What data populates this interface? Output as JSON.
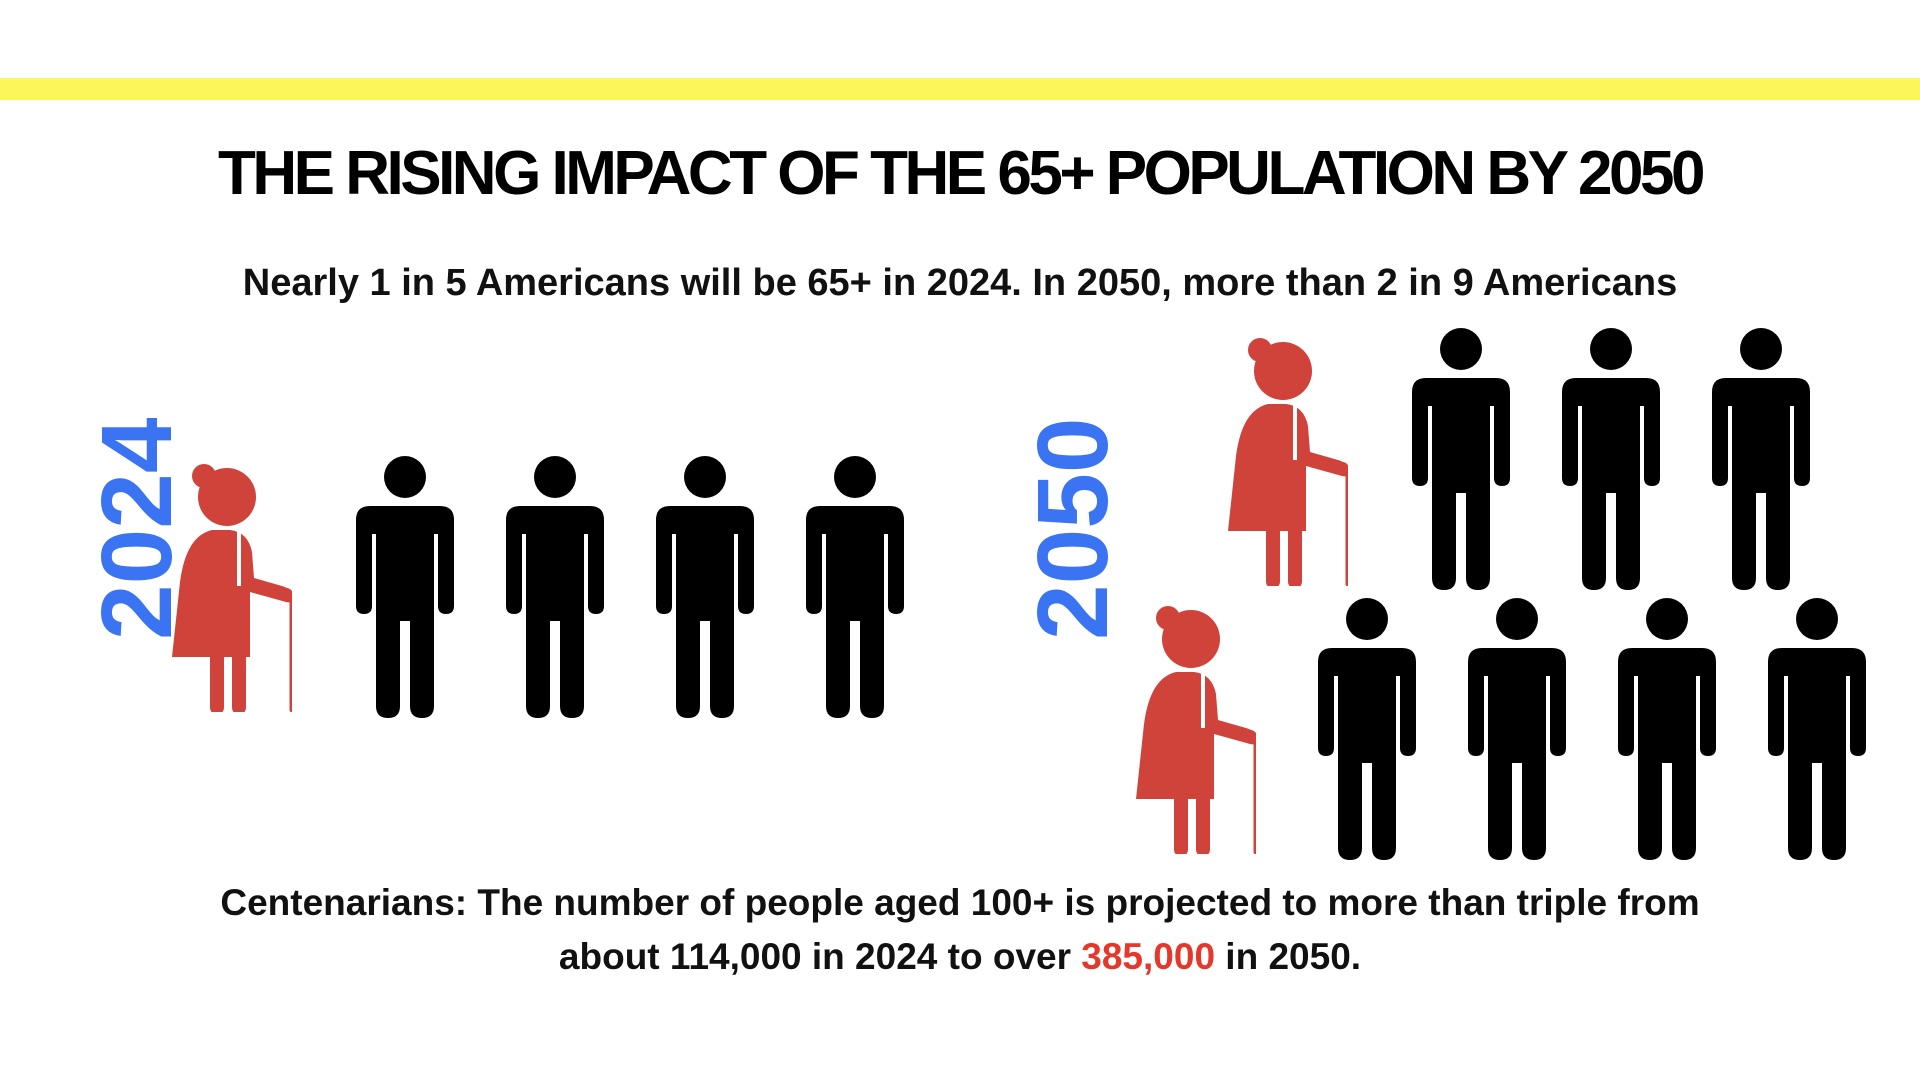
{
  "colors": {
    "accent_bar": "#fdf65a",
    "year": "#3a74f2",
    "senior": "#d0433b",
    "person": "#000000",
    "highlight": "#e5372a"
  },
  "title": "THE RISING IMPACT OF THE 65+ POPULATION BY 2050",
  "subtitle": "Nearly 1 in 5 Americans will be 65+ in 2024. In 2050, more than 2 in 9 Americans",
  "groups": [
    {
      "year": "2024",
      "seniors": 1,
      "others": 4,
      "icons": [
        "elderly-woman-icon",
        "person-icon"
      ]
    },
    {
      "year": "2050",
      "seniors": 2,
      "others": 7,
      "icons": [
        "elderly-woman-icon",
        "person-icon"
      ]
    }
  ],
  "footer": {
    "line1": "Centenarians: The number of people aged 100+ is projected to more than triple from",
    "line2_prefix": "about 114,000 in 2024 to over ",
    "line2_highlight": "385,000",
    "line2_suffix": " in 2050."
  }
}
